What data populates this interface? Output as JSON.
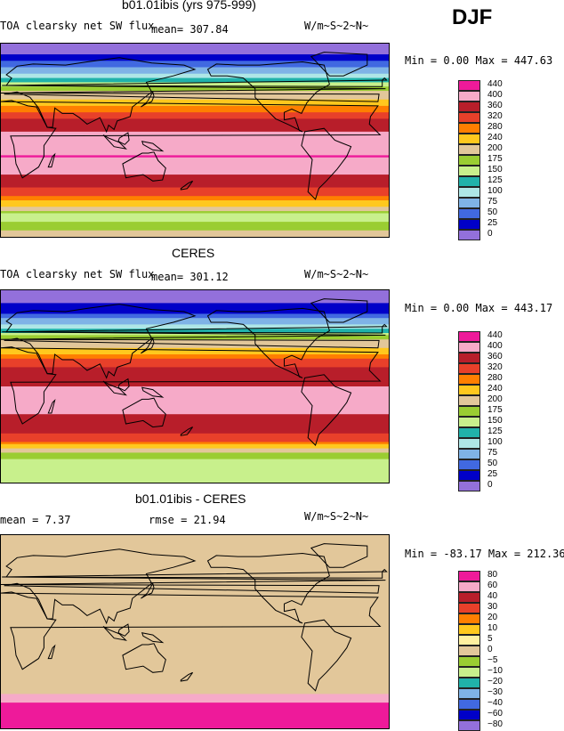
{
  "header": {
    "season": "DJF"
  },
  "panels": [
    {
      "id": "model",
      "title": "b01.01ibis (yrs 975-999)",
      "variable": "TOA clearsky net SW flux",
      "mean_text": "mean= 307.84",
      "units": "W/m~S~2~N~",
      "minmax": "Min =   0.00 Max = 447.63",
      "legend": [
        "440",
        "400",
        "360",
        "320",
        "280",
        "240",
        "200",
        "175",
        "150",
        "125",
        "100",
        "75",
        "50",
        "25",
        "0"
      ],
      "colors": [
        "#ee1a9a",
        "#f6aac8",
        "#b81e2a",
        "#e8402a",
        "#ff7f00",
        "#ffc81e",
        "#e2c79a",
        "#9acd32",
        "#c8f08c",
        "#20b2aa",
        "#aee6e6",
        "#7fb3e6",
        "#4169e1",
        "#0000c8",
        "#9370db"
      ]
    },
    {
      "id": "obs",
      "title": "CERES",
      "variable": "TOA clearsky net SW flux",
      "mean_text": "mean= 301.12",
      "units": "W/m~S~2~N~",
      "minmax": "Min =   0.00 Max = 443.17",
      "legend": [
        "440",
        "400",
        "360",
        "320",
        "280",
        "240",
        "200",
        "175",
        "150",
        "125",
        "100",
        "75",
        "50",
        "25",
        "0"
      ],
      "colors": [
        "#ee1a9a",
        "#f6aac8",
        "#b81e2a",
        "#e8402a",
        "#ff7f00",
        "#ffc81e",
        "#e2c79a",
        "#9acd32",
        "#c8f08c",
        "#20b2aa",
        "#aee6e6",
        "#7fb3e6",
        "#4169e1",
        "#0000c8",
        "#9370db"
      ]
    },
    {
      "id": "diff",
      "title": "b01.01ibis - CERES",
      "mean_text": "mean =    7.37",
      "rmse_text": "rmse =  21.94",
      "units": "W/m~S~2~N~",
      "minmax": "Min = -83.17 Max = 212.36",
      "legend": [
        "80",
        "60",
        "40",
        "30",
        "20",
        "10",
        "5",
        "0",
        "−5",
        "−10",
        "−20",
        "−30",
        "−40",
        "−60",
        "−80"
      ],
      "colors": [
        "#ee1a9a",
        "#f6aac8",
        "#b81e2a",
        "#e8402a",
        "#ff7f00",
        "#ffc81e",
        "#fff0a0",
        "#e2c79a",
        "#9acd32",
        "#c8f08c",
        "#20b2aa",
        "#7fb3e6",
        "#4169e1",
        "#0000c8",
        "#9370db"
      ]
    }
  ],
  "chart_data": [
    {
      "type": "heatmap",
      "title": "b01.01ibis (yrs 975-999)",
      "variable": "TOA clearsky net SW flux",
      "units": "W/m~S~2~N~",
      "mean": 307.84,
      "min": 0.0,
      "max": 447.63,
      "levels": [
        0,
        25,
        50,
        75,
        100,
        125,
        150,
        175,
        200,
        240,
        280,
        320,
        360,
        400,
        440
      ],
      "zonal_profile": {
        "lat": [
          85,
          70,
          55,
          45,
          35,
          25,
          15,
          0,
          -15,
          -25,
          -40,
          -50,
          -60,
          -70,
          -85
        ],
        "value": [
          10,
          60,
          140,
          200,
          260,
          330,
          390,
          410,
          440,
          420,
          380,
          330,
          250,
          160,
          200
        ]
      }
    },
    {
      "type": "heatmap",
      "title": "CERES",
      "variable": "TOA clearsky net SW flux",
      "units": "W/m~S~2~N~",
      "mean": 301.12,
      "min": 0.0,
      "max": 443.17,
      "levels": [
        0,
        25,
        50,
        75,
        100,
        125,
        150,
        175,
        200,
        240,
        280,
        320,
        360,
        400,
        440
      ],
      "zonal_profile": {
        "lat": [
          85,
          70,
          55,
          45,
          35,
          25,
          15,
          0,
          -15,
          -25,
          -40,
          -50,
          -60,
          -70,
          -85
        ],
        "value": [
          10,
          40,
          120,
          190,
          250,
          320,
          370,
          400,
          410,
          400,
          370,
          340,
          210,
          160,
          165
        ]
      }
    },
    {
      "type": "heatmap",
      "title": "b01.01ibis - CERES",
      "units": "W/m~S~2~N~",
      "mean": 7.37,
      "rmse": 21.94,
      "min": -83.17,
      "max": 212.36,
      "levels": [
        -80,
        -60,
        -40,
        -30,
        -20,
        -10,
        -5,
        0,
        5,
        10,
        20,
        30,
        40,
        60,
        80
      ]
    }
  ]
}
